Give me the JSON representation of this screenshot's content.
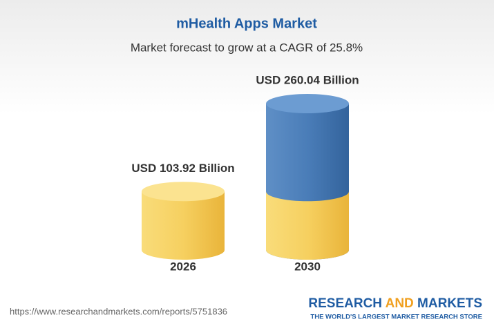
{
  "chart_data": {
    "type": "cylinder",
    "title": "mHealth Apps Market",
    "subtitle": "Market forecast to grow at a CAGR of 25.8%",
    "categories": [
      "2026",
      "2030"
    ],
    "values": [
      103.92,
      260.04
    ],
    "value_labels": [
      "USD 103.92 Billion",
      "USD 260.04 Billion"
    ],
    "colors": [
      "#f0c445",
      "#4a7db8"
    ]
  },
  "footer": {
    "url": "https://www.researchandmarkets.com/reports/5751836",
    "logo": [
      "RESEARCH",
      "AND",
      "MARKETS"
    ],
    "tagline": "THE WORLD'S LARGEST MARKET RESEARCH STORE"
  }
}
